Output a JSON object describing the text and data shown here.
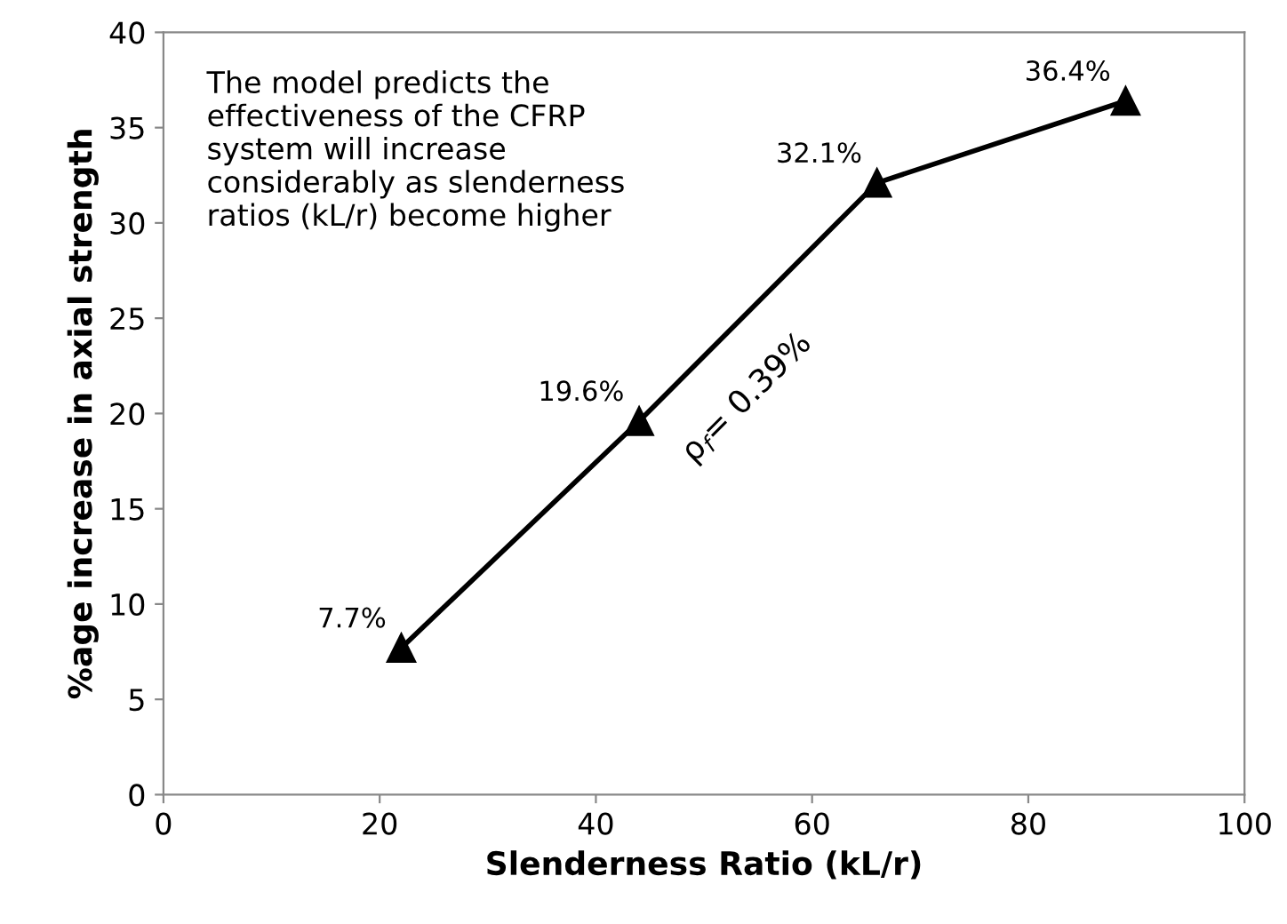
{
  "chart_data": {
    "type": "line",
    "xlabel": "Slenderness Ratio (kL/r)",
    "ylabel": "%age increase in axial strength",
    "x": [
      22,
      44,
      66,
      89
    ],
    "series": [
      {
        "color": "#000000",
        "values": [
          7.7,
          19.6,
          32.1,
          36.4
        ],
        "value_labels": [
          "7.7%",
          "19.6%",
          "32.1%",
          "36.4%"
        ]
      }
    ],
    "marker": "triangle",
    "line_style": "solid",
    "grid": false,
    "legend": false,
    "xlim": [
      0,
      100
    ],
    "xticks": [
      0,
      20,
      40,
      60,
      80,
      100
    ],
    "ylim": [
      0,
      40
    ],
    "yticks": [
      0,
      5,
      10,
      15,
      20,
      25,
      30,
      35,
      40
    ],
    "annotations": [
      "The model predicts the effectiveness of the CFRP system will increase considerably as slenderness ratios (kL/r) become higher",
      "ρ$_{f}$= 0.39%"
    ]
  }
}
